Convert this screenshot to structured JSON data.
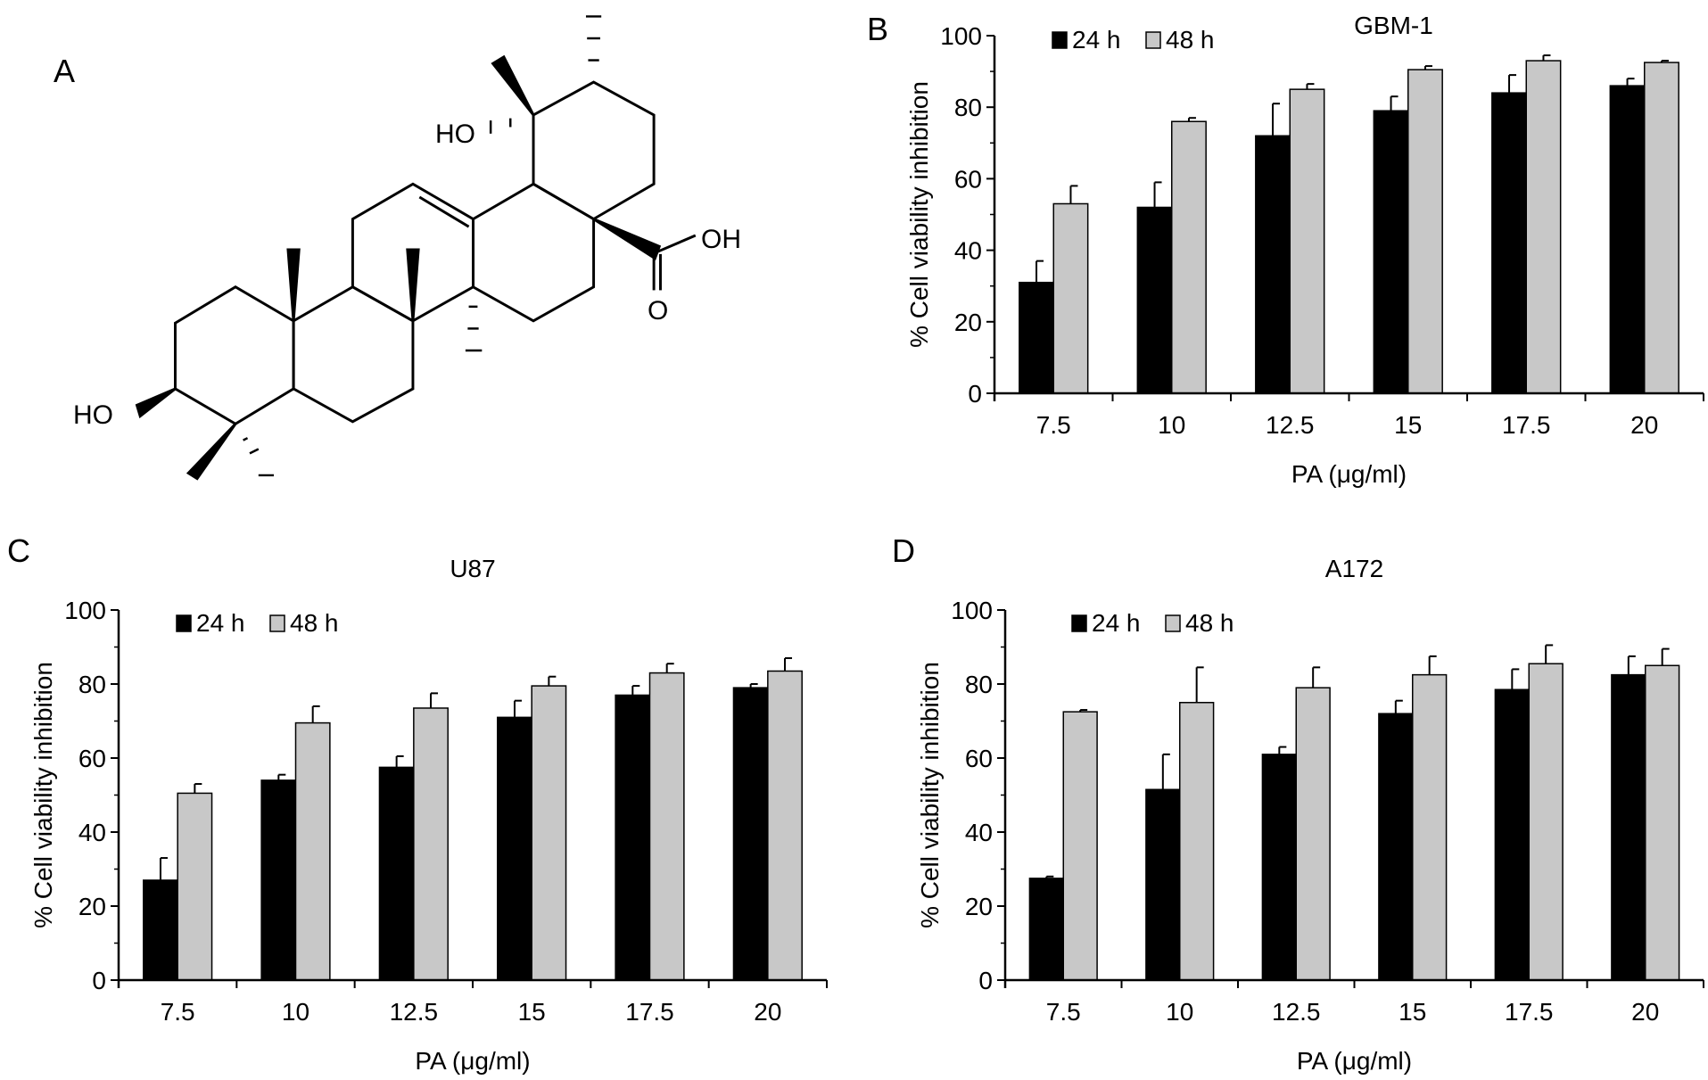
{
  "panels": {
    "A": {
      "label": "A",
      "atoms": {
        "ho_top": "HO",
        "ho_left": "HO",
        "oh": "OH",
        "o": "O"
      }
    },
    "B": {
      "label": "B"
    },
    "C": {
      "label": "C"
    },
    "D": {
      "label": "D"
    }
  },
  "colors": {
    "s24": "#000000",
    "s48": "#c8c8c8"
  },
  "chart_data": [
    {
      "type": "bar",
      "panel": "B",
      "title": "GBM-1",
      "xlabel": "PA (μg/ml)",
      "ylabel": "% Cell viability inhibition",
      "ylim": [
        0,
        100
      ],
      "yticks": [
        "0",
        "20",
        "40",
        "60",
        "80",
        "100"
      ],
      "categories": [
        "7.5",
        "10",
        "12.5",
        "15",
        "17.5",
        "20"
      ],
      "legend": "top-left",
      "series": [
        {
          "name": "24 h",
          "values": [
            31,
            52,
            72,
            79,
            84,
            86
          ],
          "errors": [
            6,
            7,
            9,
            4,
            5,
            2
          ]
        },
        {
          "name": "48 h",
          "values": [
            53,
            76,
            85,
            90.5,
            93,
            92.5
          ],
          "errors": [
            5,
            1,
            1.5,
            1,
            1.5,
            0.5
          ]
        }
      ]
    },
    {
      "type": "bar",
      "panel": "C",
      "title": "U87",
      "xlabel": "PA (μg/ml)",
      "ylabel": "% Cell viability inhibition",
      "ylim": [
        0,
        100
      ],
      "yticks": [
        "0",
        "20",
        "40",
        "60",
        "80",
        "100"
      ],
      "categories": [
        "7.5",
        "10",
        "12.5",
        "15",
        "17.5",
        "20"
      ],
      "legend": "top-left",
      "series": [
        {
          "name": "24 h",
          "values": [
            27,
            54,
            57.5,
            71,
            77,
            79
          ],
          "errors": [
            6,
            1.5,
            3,
            4.5,
            2.5,
            1
          ]
        },
        {
          "name": "48 h",
          "values": [
            50.5,
            69.5,
            73.5,
            79.5,
            83,
            83.5
          ],
          "errors": [
            2.5,
            4.5,
            4,
            2.5,
            2.5,
            3.5
          ]
        }
      ]
    },
    {
      "type": "bar",
      "panel": "D",
      "title": "A172",
      "xlabel": "PA (μg/ml)",
      "ylabel": "% Cell viability inhibition",
      "ylim": [
        0,
        100
      ],
      "yticks": [
        "0",
        "20",
        "40",
        "60",
        "80",
        "100"
      ],
      "categories": [
        "7.5",
        "10",
        "12.5",
        "15",
        "17.5",
        "20"
      ],
      "legend": "top-left",
      "series": [
        {
          "name": "24 h",
          "values": [
            27.5,
            51.5,
            61,
            72,
            78.5,
            82.5
          ],
          "errors": [
            0.5,
            9.5,
            2,
            3.5,
            5.5,
            5
          ]
        },
        {
          "name": "48 h",
          "values": [
            72.5,
            75,
            79,
            82.5,
            85.5,
            85
          ],
          "errors": [
            0.5,
            9.5,
            5.5,
            5,
            5,
            4.5
          ]
        }
      ]
    }
  ]
}
